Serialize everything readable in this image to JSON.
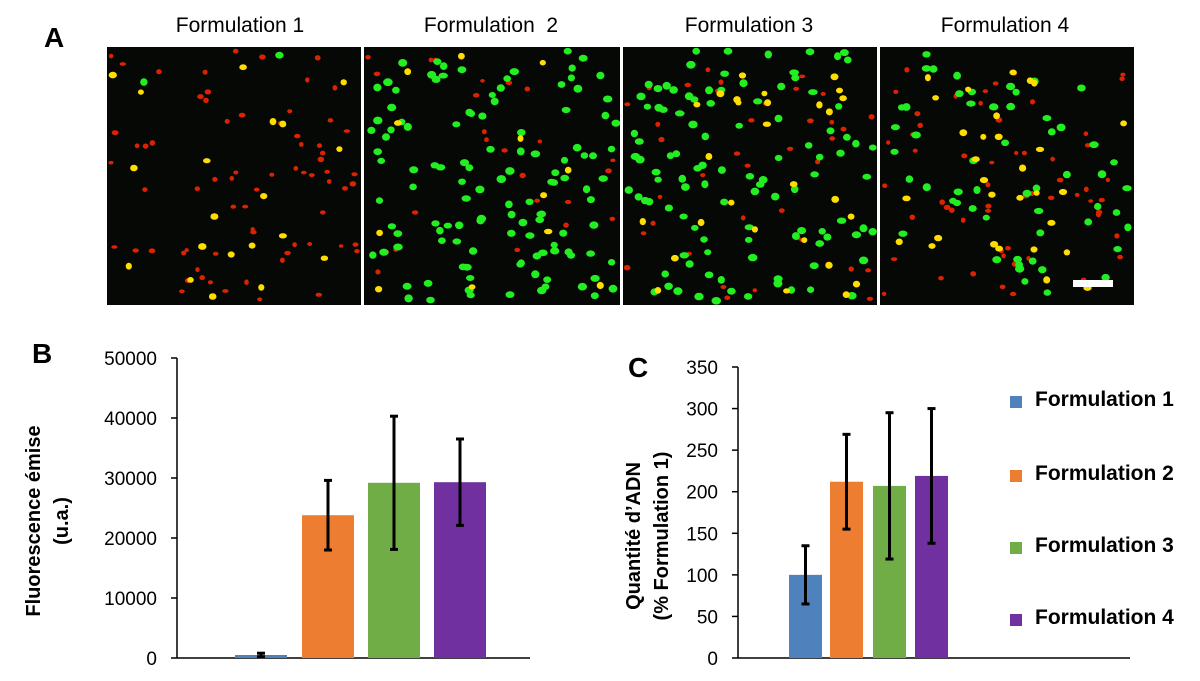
{
  "panels": {
    "a": "A",
    "b": "B",
    "c": "C"
  },
  "image_titles": [
    "Formulation 1",
    "Formulation  2",
    "Formulation 3",
    "Formulation 4"
  ],
  "scale_bar_color": "#ffffff",
  "colors": {
    "formulation_1": "#4f81bd",
    "formulation_2": "#ed7d31",
    "formulation_3": "#70ad47",
    "formulation_4": "#7030a0",
    "cell_green": "#22ee22",
    "cell_red": "#dd2200",
    "cell_yellow": "#ffdd00"
  },
  "chart_data": [
    {
      "type": "bar",
      "panel": "B",
      "ylabel": "Fluorescence émise (u.a.)",
      "ylabel_lines": [
        "Fluorescence émise",
        "(u.a.)"
      ],
      "categories": [
        "Formulation 1",
        "Formulation 2",
        "Formulation 3",
        "Formulation 4"
      ],
      "values": [
        500,
        23800,
        29200,
        29300
      ],
      "errors": [
        300,
        5800,
        11100,
        7200
      ],
      "ylim": [
        0,
        50000
      ],
      "yticks": [
        "0",
        "10000",
        "20000",
        "30000",
        "40000",
        "50000"
      ],
      "grid": false
    },
    {
      "type": "bar",
      "panel": "C",
      "ylabel": "Quantité d’ADN (% Formulation 1)",
      "ylabel_lines": [
        "Quantité d’ADN",
        "(% Formulation 1)"
      ],
      "categories": [
        "Formulation 1",
        "Formulation 2",
        "Formulation 3",
        "Formulation 4"
      ],
      "values": [
        100,
        212,
        207,
        219
      ],
      "errors": [
        35,
        57,
        88,
        81
      ],
      "ylim": [
        0,
        350
      ],
      "yticks": [
        "0",
        "50",
        "100",
        "150",
        "200",
        "250",
        "300",
        "350"
      ],
      "grid": false,
      "legend_position": "right",
      "legend": [
        "Formulation 1",
        "Formulation 2",
        "Formulation 3",
        "Formulation 4"
      ]
    }
  ]
}
